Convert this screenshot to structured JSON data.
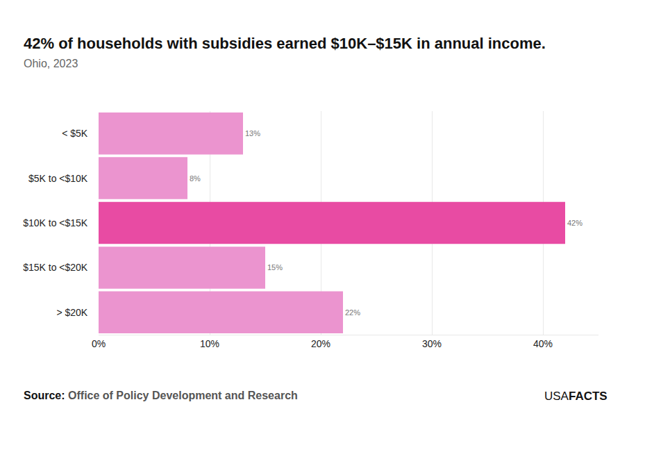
{
  "chart_data": {
    "type": "bar",
    "orientation": "horizontal",
    "title": "42% of households with subsidies earned $10K–$15K in annual income.",
    "subtitle": "Ohio, 2023",
    "categories": [
      "< $5K",
      "$5K to <$10K",
      "$10K to <$15K",
      "$15K to <$20K",
      "> $20K"
    ],
    "values": [
      13,
      8,
      42,
      15,
      22
    ],
    "value_labels": [
      "13%",
      "8%",
      "42%",
      "15%",
      "22%"
    ],
    "colors": [
      "#eb94cf",
      "#eb94cf",
      "#e84ba3",
      "#eb94cf",
      "#eb94cf"
    ],
    "data_labels": true,
    "xlim": [
      0,
      45
    ],
    "xticks": [
      {
        "value": 0,
        "label": "0%"
      },
      {
        "value": 10,
        "label": "10%"
      },
      {
        "value": 20,
        "label": "20%"
      },
      {
        "value": 30,
        "label": "30%"
      },
      {
        "value": 40,
        "label": "40%"
      }
    ],
    "grid": true,
    "source_label": "Source:",
    "source": "Office of Policy Development and Research",
    "brand": [
      "USA",
      "FACTS"
    ]
  }
}
